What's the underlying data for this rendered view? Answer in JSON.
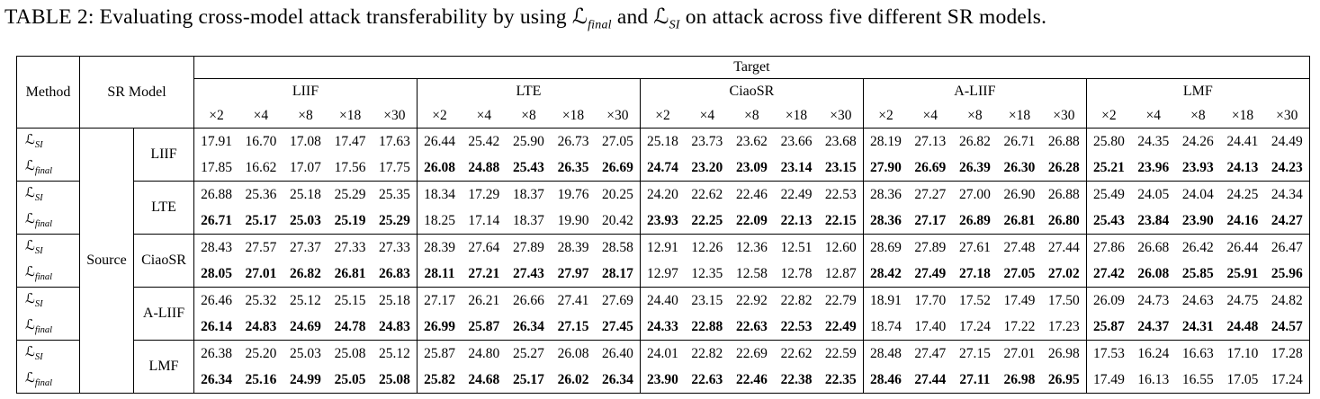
{
  "caption": {
    "label": "TABLE 2:",
    "before": "Evaluating cross-model attack transferability by using",
    "loss_final_symbol": "ℒ",
    "loss_final_sub": "final",
    "and_text": "and",
    "loss_si_symbol": "ℒ",
    "loss_si_sub": "SI",
    "after": "on attack across five different SR models."
  },
  "table": {
    "headers": {
      "method": "Method",
      "sr_model": "SR Model",
      "target": "Target",
      "groups": [
        "LIIF",
        "LTE",
        "CiaoSR",
        "A-LIIF",
        "LMF"
      ],
      "scales": [
        "×2",
        "×4",
        "×8",
        "×18",
        "×30"
      ]
    },
    "source_label": "Source",
    "method_si": {
      "symbol": "ℒ",
      "sub": "SI"
    },
    "method_final": {
      "symbol": "ℒ",
      "sub": "final"
    },
    "rows": [
      {
        "model": "LIIF",
        "final_regular_block": 0,
        "si": [
          "17.91",
          "16.70",
          "17.08",
          "17.47",
          "17.63",
          "26.44",
          "25.42",
          "25.90",
          "26.73",
          "27.05",
          "25.18",
          "23.73",
          "23.62",
          "23.66",
          "23.68",
          "28.19",
          "27.13",
          "26.82",
          "26.71",
          "26.88",
          "25.80",
          "24.35",
          "24.26",
          "24.41",
          "24.49"
        ],
        "final": [
          "17.85",
          "16.62",
          "17.07",
          "17.56",
          "17.75",
          "26.08",
          "24.88",
          "25.43",
          "26.35",
          "26.69",
          "24.74",
          "23.20",
          "23.09",
          "23.14",
          "23.15",
          "27.90",
          "26.69",
          "26.39",
          "26.30",
          "26.28",
          "25.21",
          "23.96",
          "23.93",
          "24.13",
          "24.23"
        ]
      },
      {
        "model": "LTE",
        "final_regular_block": 1,
        "si": [
          "26.88",
          "25.36",
          "25.18",
          "25.29",
          "25.35",
          "18.34",
          "17.29",
          "18.37",
          "19.76",
          "20.25",
          "24.20",
          "22.62",
          "22.46",
          "22.49",
          "22.53",
          "28.36",
          "27.27",
          "27.00",
          "26.90",
          "26.88",
          "25.49",
          "24.05",
          "24.04",
          "24.25",
          "24.34"
        ],
        "final": [
          "26.71",
          "25.17",
          "25.03",
          "25.19",
          "25.29",
          "18.25",
          "17.14",
          "18.37",
          "19.90",
          "20.42",
          "23.93",
          "22.25",
          "22.09",
          "22.13",
          "22.15",
          "28.36",
          "27.17",
          "26.89",
          "26.81",
          "26.80",
          "25.43",
          "23.84",
          "23.90",
          "24.16",
          "24.27"
        ]
      },
      {
        "model": "CiaoSR",
        "final_regular_block": 2,
        "si": [
          "28.43",
          "27.57",
          "27.37",
          "27.33",
          "27.33",
          "28.39",
          "27.64",
          "27.89",
          "28.39",
          "28.58",
          "12.91",
          "12.26",
          "12.36",
          "12.51",
          "12.60",
          "28.69",
          "27.89",
          "27.61",
          "27.48",
          "27.44",
          "27.86",
          "26.68",
          "26.42",
          "26.44",
          "26.47"
        ],
        "final": [
          "28.05",
          "27.01",
          "26.82",
          "26.81",
          "26.83",
          "28.11",
          "27.21",
          "27.43",
          "27.97",
          "28.17",
          "12.97",
          "12.35",
          "12.58",
          "12.78",
          "12.87",
          "28.42",
          "27.49",
          "27.18",
          "27.05",
          "27.02",
          "27.42",
          "26.08",
          "25.85",
          "25.91",
          "25.96"
        ]
      },
      {
        "model": "A-LIIF",
        "final_regular_block": 3,
        "si": [
          "26.46",
          "25.32",
          "25.12",
          "25.15",
          "25.18",
          "27.17",
          "26.21",
          "26.66",
          "27.41",
          "27.69",
          "24.40",
          "23.15",
          "22.92",
          "22.82",
          "22.79",
          "18.91",
          "17.70",
          "17.52",
          "17.49",
          "17.50",
          "26.09",
          "24.73",
          "24.63",
          "24.75",
          "24.82"
        ],
        "final": [
          "26.14",
          "24.83",
          "24.69",
          "24.78",
          "24.83",
          "26.99",
          "25.87",
          "26.34",
          "27.15",
          "27.45",
          "24.33",
          "22.88",
          "22.63",
          "22.53",
          "22.49",
          "18.74",
          "17.40",
          "17.24",
          "17.22",
          "17.23",
          "25.87",
          "24.37",
          "24.31",
          "24.48",
          "24.57"
        ]
      },
      {
        "model": "LMF",
        "final_regular_block": 4,
        "si": [
          "26.38",
          "25.20",
          "25.03",
          "25.08",
          "25.12",
          "25.87",
          "24.80",
          "25.27",
          "26.08",
          "26.40",
          "24.01",
          "22.82",
          "22.69",
          "22.62",
          "22.59",
          "28.48",
          "27.47",
          "27.15",
          "27.01",
          "26.98",
          "17.53",
          "16.24",
          "16.63",
          "17.10",
          "17.28"
        ],
        "final": [
          "26.34",
          "25.16",
          "24.99",
          "25.05",
          "25.08",
          "25.82",
          "24.68",
          "25.17",
          "26.02",
          "26.34",
          "23.90",
          "22.63",
          "22.46",
          "22.38",
          "22.35",
          "28.46",
          "27.44",
          "27.11",
          "26.98",
          "26.95",
          "17.49",
          "16.13",
          "16.55",
          "17.05",
          "17.24"
        ]
      }
    ],
    "layout": {
      "col_widths": {
        "method": 70,
        "source": 60,
        "model": 67,
        "data": 49.6
      }
    }
  }
}
